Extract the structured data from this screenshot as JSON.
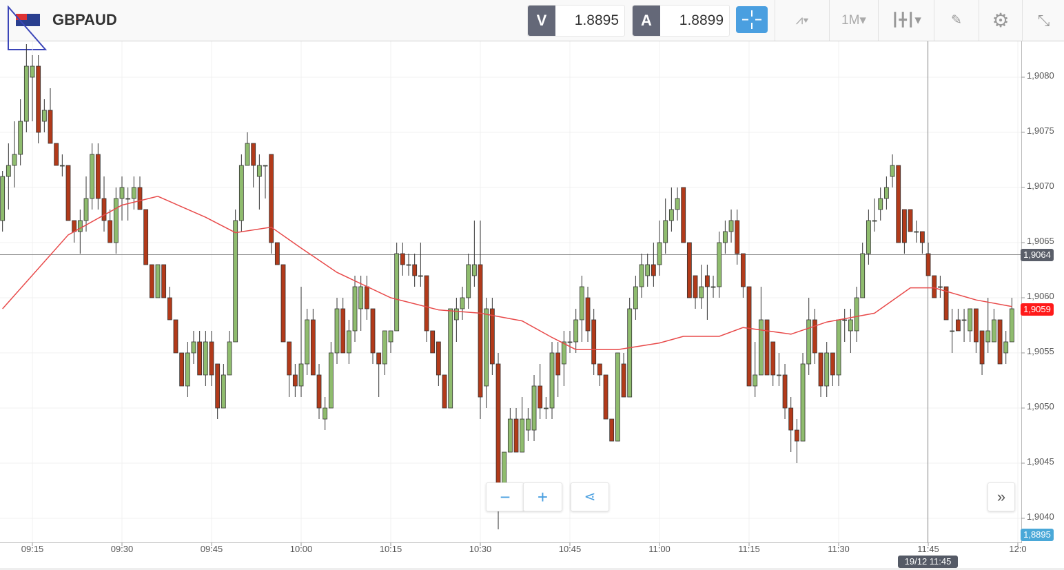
{
  "header": {
    "symbol": "GBPAUD",
    "flag_icon": "gbp-aud-flag",
    "sell_label": "V",
    "sell_price": "1.8895",
    "buy_label": "A",
    "buy_price": "1.8899",
    "timeframe": "1M"
  },
  "colors": {
    "up": "#8fbc6e",
    "down": "#b23a1a",
    "ma": "#e84a4a",
    "accent": "#4a9fe0",
    "current_tag": "#ff1a1a",
    "crosshair_tag": "#5a5e69",
    "bid_tag": "#4aa8d8"
  },
  "tags": {
    "crosshair_price": "1,9064",
    "current_price": "1,9059",
    "bid_price": "1,8895",
    "crosshair_time": "19/12 11:45"
  },
  "chart_data": {
    "type": "candlestick",
    "interval": "1M",
    "start_time": "09:10",
    "price_axis": {
      "ticks": [
        "1,9080",
        "1,9075",
        "1,9070",
        "1,9065",
        "1,9060",
        "1,9055",
        "1,9050",
        "1,9045",
        "1,9040"
      ],
      "range": [
        1.90355,
        1.90845
      ]
    },
    "time_axis": {
      "ticks": [
        "09:15",
        "09:30",
        "09:45",
        "10:00",
        "10:15",
        "10:30",
        "10:45",
        "11:00",
        "11:15",
        "11:30",
        "11:45",
        "12:0"
      ]
    },
    "candles_ohlc_pips_above_1.9000": [
      [
        67,
        71.5,
        66,
        71
      ],
      [
        71,
        74,
        68,
        72
      ],
      [
        72,
        76,
        70,
        73
      ],
      [
        73,
        78,
        72,
        76
      ],
      [
        76,
        83,
        75,
        81
      ],
      [
        80,
        82,
        76,
        81
      ],
      [
        81,
        82,
        74,
        75
      ],
      [
        76,
        78,
        75,
        77
      ],
      [
        77,
        79,
        74,
        74
      ],
      [
        74,
        74,
        72,
        72
      ],
      [
        72,
        73,
        71,
        72
      ],
      [
        72,
        72,
        67,
        67
      ],
      [
        67,
        67,
        65,
        66
      ],
      [
        66,
        68,
        64,
        67
      ],
      [
        67,
        71,
        66,
        69
      ],
      [
        69,
        74,
        68,
        73
      ],
      [
        73,
        74,
        68,
        69
      ],
      [
        69,
        71,
        66,
        67
      ],
      [
        67,
        68,
        65,
        65
      ],
      [
        65,
        70,
        64,
        69
      ],
      [
        69,
        71,
        67,
        70
      ],
      [
        69,
        70,
        67,
        69
      ],
      [
        69,
        71,
        68,
        70
      ],
      [
        70,
        71,
        68,
        68
      ],
      [
        68,
        68,
        63,
        63
      ],
      [
        63,
        63,
        60,
        60
      ],
      [
        60,
        63,
        60,
        63
      ],
      [
        63,
        63,
        60,
        60
      ],
      [
        60,
        61,
        58,
        58
      ],
      [
        58,
        58,
        55,
        55
      ],
      [
        55,
        55,
        52,
        52
      ],
      [
        52,
        56,
        51,
        55
      ],
      [
        55,
        57,
        54,
        56
      ],
      [
        56,
        57,
        53,
        53
      ],
      [
        53,
        57,
        52,
        56
      ],
      [
        56,
        57,
        52,
        53
      ],
      [
        54,
        54,
        49,
        50
      ],
      [
        50,
        54,
        50,
        53
      ],
      [
        53,
        57,
        53,
        56
      ],
      [
        56,
        68,
        56,
        67
      ],
      [
        67,
        73,
        66,
        72
      ],
      [
        72,
        75,
        72,
        74
      ],
      [
        74,
        74,
        70,
        72
      ],
      [
        71,
        73,
        68,
        72
      ],
      [
        72,
        72,
        69,
        72
      ],
      [
        73,
        73,
        64,
        65
      ],
      [
        65,
        65,
        63,
        63
      ],
      [
        63,
        63,
        56,
        56
      ],
      [
        56,
        56,
        51,
        53
      ],
      [
        53,
        54,
        51,
        52
      ],
      [
        52,
        61,
        51,
        54
      ],
      [
        54,
        59,
        53,
        58
      ],
      [
        58,
        59,
        53,
        53
      ],
      [
        53,
        54,
        49,
        50
      ],
      [
        49,
        51,
        48,
        50
      ],
      [
        50,
        56,
        50,
        55
      ],
      [
        55,
        60,
        54,
        59
      ],
      [
        59,
        60,
        55,
        55
      ],
      [
        55,
        58,
        54,
        57
      ],
      [
        57,
        62,
        56,
        61
      ],
      [
        59,
        62,
        57,
        61
      ],
      [
        61,
        62,
        58,
        59
      ],
      [
        59,
        59,
        54,
        55
      ],
      [
        55,
        55,
        51,
        54
      ],
      [
        54,
        57,
        53,
        57
      ],
      [
        56,
        57,
        55,
        57
      ],
      [
        57,
        65,
        57,
        64
      ],
      [
        64,
        65,
        62,
        63
      ],
      [
        63,
        64,
        62,
        63
      ],
      [
        63,
        64,
        61,
        62
      ],
      [
        62,
        65,
        61,
        62
      ],
      [
        62,
        62,
        56,
        57
      ],
      [
        57,
        57,
        55,
        55
      ],
      [
        56,
        56,
        52,
        53
      ],
      [
        53,
        53,
        50,
        50
      ],
      [
        50,
        59,
        50,
        59
      ],
      [
        58,
        60,
        56,
        59
      ],
      [
        59,
        61,
        58,
        60
      ],
      [
        60,
        64,
        59,
        63
      ],
      [
        62,
        67,
        61,
        63
      ],
      [
        63,
        67,
        49,
        51
      ],
      [
        52,
        60,
        50,
        59
      ],
      [
        59,
        60,
        53,
        54
      ],
      [
        54,
        55,
        39,
        42
      ],
      [
        43,
        46,
        43,
        46
      ],
      [
        46,
        50,
        46,
        49
      ],
      [
        49,
        50,
        46,
        46
      ],
      [
        46,
        51,
        46,
        49
      ],
      [
        48,
        50,
        47,
        49
      ],
      [
        48,
        53,
        47,
        52
      ],
      [
        52,
        54,
        49,
        50
      ],
      [
        50,
        51,
        49,
        50
      ],
      [
        50,
        56,
        49,
        55
      ],
      [
        55,
        56,
        51,
        53
      ],
      [
        54,
        57,
        52,
        56
      ],
      [
        56,
        57,
        55,
        56
      ],
      [
        56,
        59,
        55,
        58
      ],
      [
        58,
        62,
        56,
        61
      ],
      [
        60,
        61,
        56,
        57
      ],
      [
        58,
        59,
        53,
        54
      ],
      [
        54,
        54,
        52,
        53
      ],
      [
        53,
        53,
        49,
        49
      ],
      [
        49,
        49,
        47,
        47
      ],
      [
        47,
        55,
        47,
        55
      ],
      [
        54,
        55,
        51,
        51
      ],
      [
        51,
        60,
        51,
        59
      ],
      [
        59,
        62,
        58,
        61
      ],
      [
        61,
        64,
        60,
        63
      ],
      [
        62,
        64,
        61,
        63
      ],
      [
        63,
        65,
        61,
        62
      ],
      [
        63,
        67,
        62,
        65
      ],
      [
        65,
        69,
        64,
        67
      ],
      [
        67,
        70,
        66,
        68
      ],
      [
        68,
        70,
        67,
        69
      ],
      [
        70,
        70,
        65,
        65
      ],
      [
        65,
        65,
        60,
        60
      ],
      [
        62,
        62,
        59,
        60
      ],
      [
        60,
        63,
        59,
        61
      ],
      [
        62,
        63,
        58,
        61
      ],
      [
        61,
        62,
        60,
        61
      ],
      [
        61,
        66,
        60,
        65
      ],
      [
        65,
        67,
        64,
        66
      ],
      [
        66,
        68,
        65,
        67
      ],
      [
        67,
        68,
        63,
        64
      ],
      [
        64,
        64,
        60,
        61
      ],
      [
        61,
        61,
        52,
        52
      ],
      [
        52,
        56,
        51,
        53
      ],
      [
        53,
        61,
        53,
        58
      ],
      [
        58,
        58,
        53,
        53
      ],
      [
        56,
        56,
        52,
        53
      ],
      [
        53,
        55,
        52,
        53
      ],
      [
        53,
        54,
        49,
        50
      ],
      [
        50,
        51,
        46,
        48
      ],
      [
        48,
        49,
        45,
        47
      ],
      [
        47,
        55,
        47,
        54
      ],
      [
        54,
        60,
        53,
        58
      ],
      [
        58,
        59,
        54,
        55
      ],
      [
        55,
        55,
        51,
        52
      ],
      [
        52,
        56,
        51,
        55
      ],
      [
        55,
        55,
        52,
        53
      ],
      [
        53,
        58,
        52,
        58
      ],
      [
        58,
        59,
        56,
        58
      ],
      [
        57,
        59,
        55,
        58
      ],
      [
        57,
        61,
        56,
        60
      ],
      [
        60,
        65,
        60,
        64
      ],
      [
        64,
        68,
        63,
        67
      ],
      [
        67,
        69,
        66,
        67
      ],
      [
        68,
        70,
        67,
        69
      ],
      [
        69,
        71,
        68,
        70
      ],
      [
        71,
        73,
        70,
        72
      ],
      [
        72,
        72,
        65,
        65
      ],
      [
        68,
        68,
        64,
        65
      ],
      [
        68,
        68,
        66,
        66
      ],
      [
        66,
        67,
        65,
        66
      ],
      [
        66,
        66,
        64,
        65
      ],
      [
        64,
        65,
        62,
        62
      ],
      [
        62,
        62,
        60,
        60
      ],
      [
        61,
        62,
        60,
        61
      ],
      [
        61,
        61,
        58,
        58
      ],
      [
        57,
        59,
        55,
        57
      ],
      [
        58,
        59,
        57,
        57
      ],
      [
        58,
        59,
        56,
        58
      ],
      [
        57,
        59,
        56,
        59
      ],
      [
        59,
        59,
        55,
        56
      ],
      [
        57,
        57,
        53,
        54
      ],
      [
        56,
        60,
        55,
        57
      ],
      [
        56,
        59,
        56,
        58
      ],
      [
        58,
        58,
        54,
        54
      ],
      [
        55,
        57,
        54,
        56
      ],
      [
        56,
        60,
        56,
        59
      ]
    ],
    "moving_average": [
      [
        "09:10",
        59
      ],
      [
        "09:21",
        65.7
      ],
      [
        "09:30",
        68.4
      ],
      [
        "09:36",
        69.2
      ],
      [
        "09:44",
        67.3
      ],
      [
        "09:49",
        65.9
      ],
      [
        "09:55",
        66.4
      ],
      [
        "10:00",
        64.5
      ],
      [
        "10:06",
        62.3
      ],
      [
        "10:15",
        60
      ],
      [
        "10:23",
        58.9
      ],
      [
        "10:30",
        58.6
      ],
      [
        "10:37",
        57.9
      ],
      [
        "10:42",
        56.4
      ],
      [
        "10:46",
        55.3
      ],
      [
        "10:53",
        55.3
      ],
      [
        "11:00",
        55.9
      ],
      [
        "11:04",
        56.5
      ],
      [
        "11:10",
        56.5
      ],
      [
        "11:14",
        57.3
      ],
      [
        "11:22",
        56.7
      ],
      [
        "11:28",
        57.8
      ],
      [
        "11:36",
        58.6
      ],
      [
        "11:42",
        60.9
      ],
      [
        "11:46",
        60.9
      ],
      [
        "11:53",
        59.8
      ],
      [
        "11:59",
        59.2
      ]
    ],
    "grid": true
  }
}
